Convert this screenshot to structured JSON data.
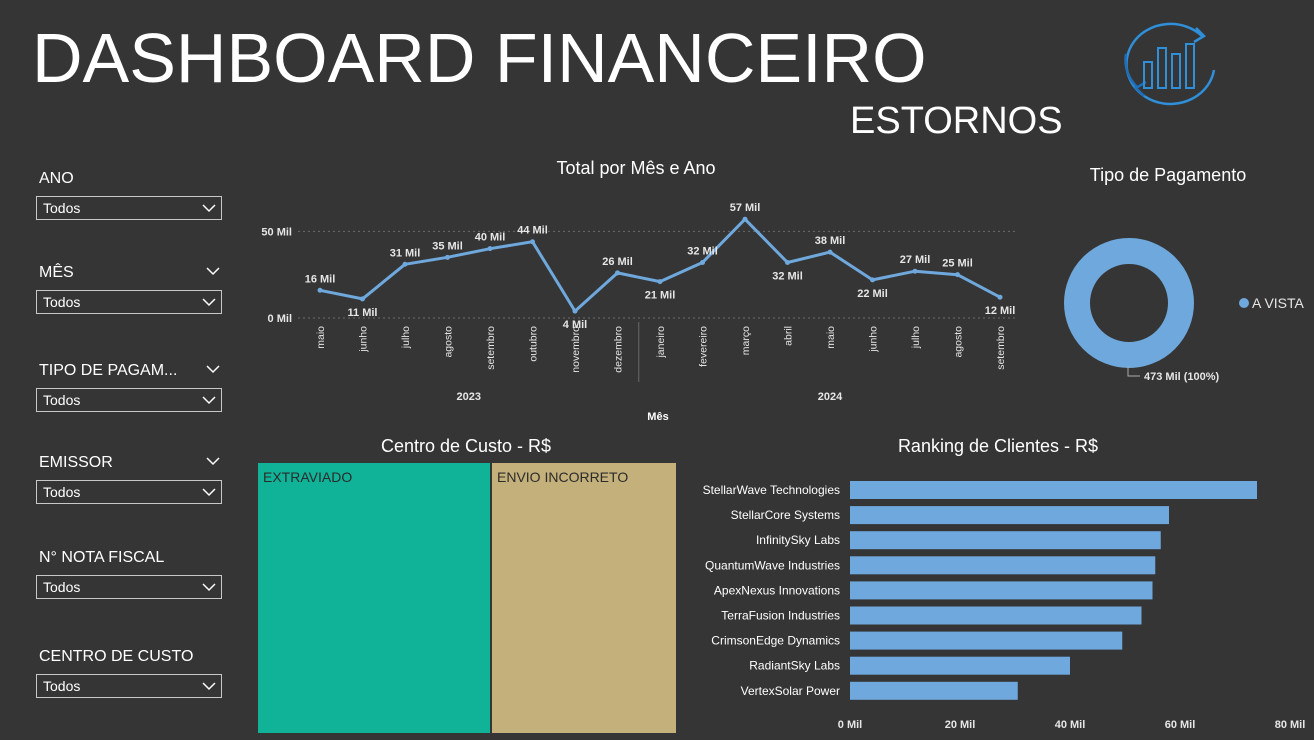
{
  "header": {
    "title": "DASHBOARD FINANCEIRO",
    "subtitle": "ESTORNOS"
  },
  "filters": [
    {
      "label": "ANO",
      "value": "Todos"
    },
    {
      "label": "MÊS",
      "value": "Todos"
    },
    {
      "label": "TIPO DE PAGAM...",
      "value": "Todos"
    },
    {
      "label": "EMISSOR",
      "value": "Todos"
    },
    {
      "label": "N° NOTA FISCAL",
      "value": "Todos"
    },
    {
      "label": "CENTRO DE CUSTO",
      "value": "Todos"
    }
  ],
  "colors": {
    "background": "#353535",
    "line": "#6fa8dc",
    "teal": "#10b398",
    "tan": "#c4b07a",
    "bar": "#6fa8dc"
  },
  "chart_data": [
    {
      "type": "line",
      "title": "Total por Mês e Ano",
      "xlabel": "Mês",
      "ylabel": "",
      "y_ticks": [
        "50 Mil",
        "0 Mil"
      ],
      "ylim": [
        0,
        60
      ],
      "categories": [
        "maio",
        "junho",
        "julho",
        "agosto",
        "setembro",
        "outubro",
        "novembro",
        "dezembro",
        "janeiro",
        "fevereiro",
        "março",
        "abril",
        "maio",
        "junho",
        "julho",
        "agosto",
        "setembro"
      ],
      "year_groups": [
        {
          "label": "2023",
          "count": 8
        },
        {
          "label": "2024",
          "count": 9
        }
      ],
      "values": [
        16,
        11,
        31,
        35,
        40,
        44,
        4,
        26,
        21,
        32,
        57,
        32,
        38,
        22,
        27,
        25,
        12
      ],
      "data_labels": [
        "16 Mil",
        "11 Mil",
        "31 Mil",
        "35 Mil",
        "40 Mil",
        "44 Mil",
        "4 Mil",
        "26 Mil",
        "21 Mil",
        "32 Mil",
        "57 Mil",
        "32 Mil",
        "38 Mil",
        "22 Mil",
        "27 Mil",
        "25 Mil",
        "12 Mil"
      ],
      "grid": true
    },
    {
      "type": "pie",
      "title": "Tipo de Pagamento",
      "categories": [
        "A VISTA"
      ],
      "values": [
        473
      ],
      "data_labels": [
        "473 Mil (100%)"
      ],
      "legend": "right"
    },
    {
      "type": "table",
      "title": "Centro de Custo - R$",
      "categories": [
        "EXTRAVIADO",
        "ENVIO INCORRETO"
      ]
    },
    {
      "type": "bar",
      "title": "Ranking de Clientes - R$",
      "orientation": "horizontal",
      "categories": [
        "StellarWave Technologies",
        "StellarCore Systems",
        "InfinitySky Labs",
        "QuantumWave Industries",
        "ApexNexus Innovations",
        "TerraFusion Industries",
        "CrimsonEdge Dynamics",
        "RadiantSky Labs",
        "VertexSolar Power"
      ],
      "values": [
        74,
        58,
        56.5,
        55.5,
        55,
        53,
        49.5,
        40,
        30.5
      ],
      "x_ticks": [
        "0 Mil",
        "20 Mil",
        "40 Mil",
        "60 Mil",
        "80 Mil"
      ],
      "xlim": [
        0,
        80
      ]
    }
  ]
}
